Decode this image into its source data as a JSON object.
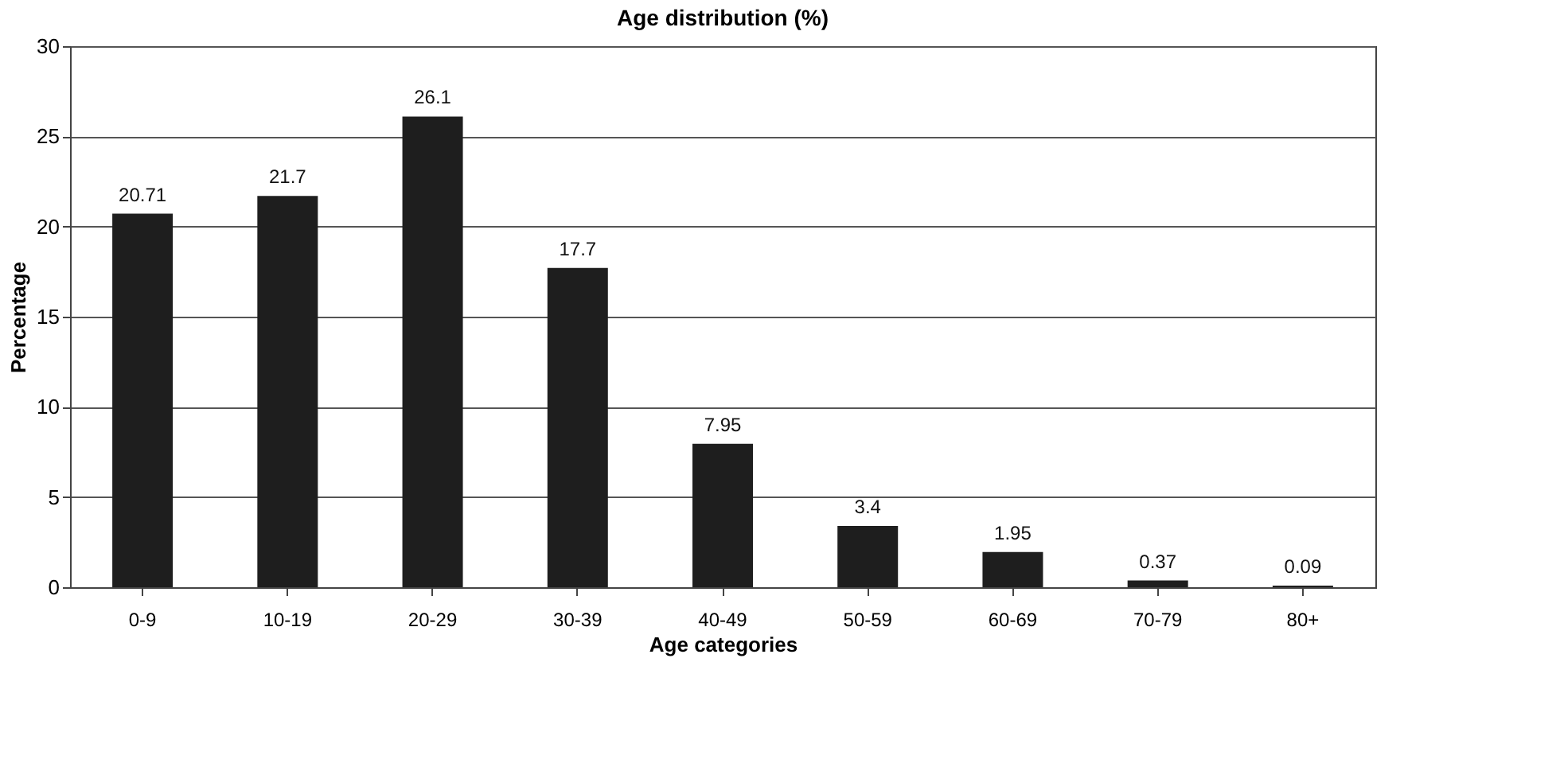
{
  "chart_data": {
    "type": "bar",
    "title": "Age distribution (%)",
    "xlabel": "Age categories",
    "ylabel": "Percentage",
    "categories": [
      "0-9",
      "10-19",
      "20-29",
      "30-39",
      "40-49",
      "50-59",
      "60-69",
      "70-79",
      "80+"
    ],
    "values": [
      20.71,
      21.7,
      26.1,
      17.7,
      7.95,
      3.4,
      1.95,
      0.37,
      0.09
    ],
    "color": "#1e1e1e",
    "ylim": [
      0,
      30
    ],
    "yticks": [
      0,
      5,
      10,
      15,
      20,
      25,
      30
    ],
    "grid": "y",
    "data_labels": true
  }
}
